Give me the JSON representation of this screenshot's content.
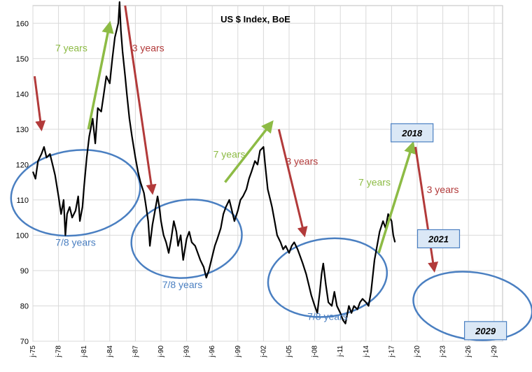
{
  "chart_data": {
    "type": "line",
    "title": "US $ Index, BoE",
    "xlabel": "",
    "ylabel": "",
    "ylim": [
      70,
      165
    ],
    "yticks": [
      70,
      80,
      90,
      100,
      110,
      120,
      130,
      140,
      150,
      160
    ],
    "xlim": [
      1975,
      2030
    ],
    "xticks": [
      {
        "label": "j-75",
        "year": 1975
      },
      {
        "label": "j-78",
        "year": 1978
      },
      {
        "label": "j-81",
        "year": 1981
      },
      {
        "label": "j-84",
        "year": 1984
      },
      {
        "label": "j-87",
        "year": 1987
      },
      {
        "label": "j-90",
        "year": 1990
      },
      {
        "label": "j-93",
        "year": 1993
      },
      {
        "label": "j-96",
        "year": 1996
      },
      {
        "label": "j-99",
        "year": 1999
      },
      {
        "label": "j-02",
        "year": 2002
      },
      {
        "label": "j-05",
        "year": 2005
      },
      {
        "label": "j-08",
        "year": 2008
      },
      {
        "label": "j-11",
        "year": 2011
      },
      {
        "label": "j-14",
        "year": 2014
      },
      {
        "label": "j-17",
        "year": 2017
      },
      {
        "label": "j-20",
        "year": 2020
      },
      {
        "label": "j-23",
        "year": 2023
      },
      {
        "label": "j-26",
        "year": 2026
      },
      {
        "label": "j-29",
        "year": 2029
      }
    ],
    "grid": true,
    "line_color": "#000000",
    "series": [
      {
        "points": [
          [
            1975.0,
            118
          ],
          [
            1975.3,
            116
          ],
          [
            1975.6,
            121
          ],
          [
            1976.0,
            123
          ],
          [
            1976.3,
            125
          ],
          [
            1976.6,
            122
          ],
          [
            1977.0,
            123
          ],
          [
            1977.3,
            120
          ],
          [
            1977.6,
            117
          ],
          [
            1978.0,
            111
          ],
          [
            1978.3,
            106
          ],
          [
            1978.6,
            110
          ],
          [
            1978.8,
            100
          ],
          [
            1979.0,
            106
          ],
          [
            1979.3,
            108
          ],
          [
            1979.6,
            105
          ],
          [
            1980.0,
            107
          ],
          [
            1980.3,
            111
          ],
          [
            1980.5,
            104
          ],
          [
            1980.8,
            108
          ],
          [
            1981.0,
            114
          ],
          [
            1981.3,
            122
          ],
          [
            1981.6,
            128
          ],
          [
            1982.0,
            133
          ],
          [
            1982.3,
            126
          ],
          [
            1982.6,
            136
          ],
          [
            1983.0,
            135
          ],
          [
            1983.3,
            140
          ],
          [
            1983.6,
            145
          ],
          [
            1984.0,
            143
          ],
          [
            1984.3,
            150
          ],
          [
            1984.6,
            156
          ],
          [
            1985.0,
            160
          ],
          [
            1985.15,
            166
          ],
          [
            1985.3,
            158
          ],
          [
            1985.5,
            152
          ],
          [
            1985.8,
            145
          ],
          [
            1986.0,
            140
          ],
          [
            1986.3,
            133
          ],
          [
            1986.6,
            128
          ],
          [
            1987.0,
            122
          ],
          [
            1987.3,
            118
          ],
          [
            1987.6,
            115
          ],
          [
            1988.0,
            112
          ],
          [
            1988.2,
            109
          ],
          [
            1988.5,
            104
          ],
          [
            1988.7,
            97
          ],
          [
            1989.0,
            103
          ],
          [
            1989.3,
            107
          ],
          [
            1989.6,
            111
          ],
          [
            1989.8,
            108
          ],
          [
            1990.0,
            104
          ],
          [
            1990.3,
            100
          ],
          [
            1990.6,
            98
          ],
          [
            1990.9,
            95
          ],
          [
            1991.2,
            99
          ],
          [
            1991.5,
            104
          ],
          [
            1991.8,
            101
          ],
          [
            1992.0,
            97
          ],
          [
            1992.3,
            100
          ],
          [
            1992.6,
            93
          ],
          [
            1993.0,
            99
          ],
          [
            1993.3,
            101
          ],
          [
            1993.6,
            98
          ],
          [
            1994.0,
            97
          ],
          [
            1994.3,
            95
          ],
          [
            1994.6,
            93
          ],
          [
            1995.0,
            91
          ],
          [
            1995.3,
            88
          ],
          [
            1995.6,
            90
          ],
          [
            1996.0,
            94
          ],
          [
            1996.3,
            97
          ],
          [
            1996.6,
            99
          ],
          [
            1997.0,
            102
          ],
          [
            1997.3,
            106
          ],
          [
            1997.6,
            108
          ],
          [
            1998.0,
            110
          ],
          [
            1998.3,
            107
          ],
          [
            1998.6,
            104
          ],
          [
            1999.0,
            107
          ],
          [
            1999.3,
            110
          ],
          [
            1999.6,
            111
          ],
          [
            2000.0,
            113
          ],
          [
            2000.3,
            116
          ],
          [
            2000.6,
            118
          ],
          [
            2001.0,
            121
          ],
          [
            2001.3,
            120
          ],
          [
            2001.6,
            124
          ],
          [
            2002.0,
            125
          ],
          [
            2002.2,
            120
          ],
          [
            2002.5,
            113
          ],
          [
            2002.8,
            110
          ],
          [
            2003.0,
            108
          ],
          [
            2003.3,
            104
          ],
          [
            2003.6,
            100
          ],
          [
            2004.0,
            98
          ],
          [
            2004.3,
            96
          ],
          [
            2004.6,
            97
          ],
          [
            2005.0,
            95
          ],
          [
            2005.3,
            97
          ],
          [
            2005.6,
            98
          ],
          [
            2006.0,
            96
          ],
          [
            2006.3,
            94
          ],
          [
            2006.6,
            92
          ],
          [
            2007.0,
            89
          ],
          [
            2007.3,
            86
          ],
          [
            2007.6,
            83
          ],
          [
            2008.0,
            80
          ],
          [
            2008.3,
            78
          ],
          [
            2008.6,
            84
          ],
          [
            2008.8,
            89
          ],
          [
            2009.0,
            92
          ],
          [
            2009.3,
            86
          ],
          [
            2009.6,
            81
          ],
          [
            2010.0,
            80
          ],
          [
            2010.3,
            84
          ],
          [
            2010.6,
            80
          ],
          [
            2011.0,
            78
          ],
          [
            2011.3,
            76
          ],
          [
            2011.6,
            75
          ],
          [
            2012.0,
            80
          ],
          [
            2012.3,
            78
          ],
          [
            2012.6,
            80
          ],
          [
            2013.0,
            79
          ],
          [
            2013.3,
            81
          ],
          [
            2013.6,
            82
          ],
          [
            2014.0,
            81
          ],
          [
            2014.3,
            80
          ],
          [
            2014.6,
            84
          ],
          [
            2015.0,
            93
          ],
          [
            2015.3,
            97
          ],
          [
            2015.6,
            101
          ],
          [
            2016.0,
            104
          ],
          [
            2016.3,
            102
          ],
          [
            2016.6,
            106
          ],
          [
            2017.0,
            104
          ],
          [
            2017.2,
            100
          ],
          [
            2017.4,
            98
          ]
        ]
      }
    ],
    "annotations": {
      "green_labels": [
        {
          "text": "7 years",
          "x": 1979.5,
          "y": 152
        },
        {
          "text": "7 years",
          "x": 1998.0,
          "y": 122
        },
        {
          "text": "7 years",
          "x": 2015.0,
          "y": 114
        }
      ],
      "red_labels": [
        {
          "text": "3 years",
          "x": 1988.5,
          "y": 152
        },
        {
          "text": "3 years",
          "x": 2006.5,
          "y": 120
        },
        {
          "text": "3 years",
          "x": 2023.0,
          "y": 112
        }
      ],
      "blue_labels": [
        {
          "text": "7/8 years",
          "x": 1980.0,
          "y": 97
        },
        {
          "text": "7/8 years",
          "x": 1992.5,
          "y": 85
        },
        {
          "text": "7/8 years",
          "x": 2009.5,
          "y": 76
        }
      ],
      "box_labels": [
        {
          "text": "2018",
          "x": 2019.4,
          "y": 129
        },
        {
          "text": "2021",
          "x": 2022.5,
          "y": 99
        },
        {
          "text": "2029",
          "x": 2028.0,
          "y": 73
        }
      ],
      "green_arrows": [
        [
          1981.5,
          130,
          1984.0,
          160
        ],
        [
          1997.5,
          115,
          2003.0,
          132
        ],
        [
          2015.5,
          95,
          2019.5,
          126
        ]
      ],
      "red_arrows": [
        [
          1975.2,
          145,
          1976.0,
          130
        ],
        [
          1985.8,
          165,
          1989.0,
          112
        ],
        [
          2003.8,
          130,
          2006.8,
          100
        ],
        [
          2019.8,
          125,
          2022.0,
          90
        ]
      ],
      "ellipses": [
        [
          1980.0,
          112,
          7.6,
          12.0,
          -8
        ],
        [
          1993.0,
          99,
          6.5,
          11.0,
          -8
        ],
        [
          2009.5,
          88,
          7.0,
          11.0,
          -8
        ],
        [
          2026.5,
          80,
          7.0,
          9.5,
          8
        ]
      ]
    },
    "colors": {
      "green": "#8dbb45",
      "red": "#b23a3a",
      "blue": "#4a7fc1",
      "box_fill": "#dbe8f6",
      "box_stroke": "#4a7fc1",
      "grid": "#d9d9d9"
    }
  }
}
